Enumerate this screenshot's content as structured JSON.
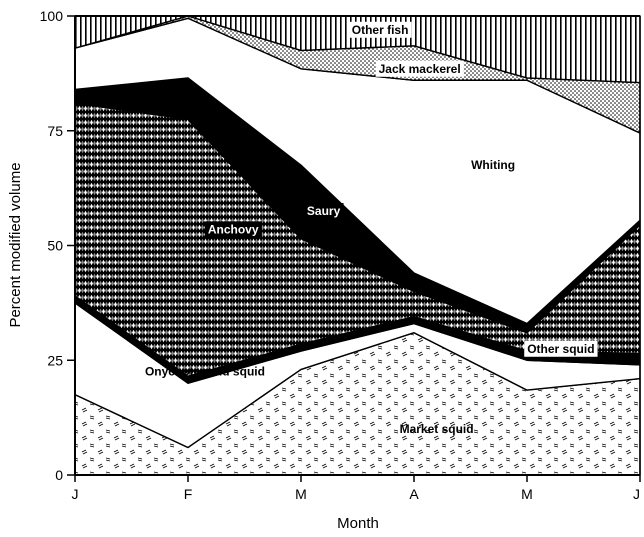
{
  "chart_data": {
    "type": "area",
    "stacked": true,
    "xlabel": "Month",
    "ylabel": "Percent modified volume",
    "x": [
      "J",
      "F",
      "M",
      "A",
      "M",
      "J"
    ],
    "ylim": [
      0,
      100
    ],
    "yticks": [
      0,
      25,
      50,
      75,
      100
    ],
    "grid": false,
    "legend": "none",
    "series": [
      {
        "name": "Market squid",
        "values": [
          17.5,
          6,
          23,
          31,
          18.5,
          21
        ],
        "pattern": "dashes"
      },
      {
        "name": "Onychoteuthid squid",
        "values": [
          20,
          14,
          4,
          2,
          6.5,
          3
        ],
        "pattern": "white"
      },
      {
        "name": "Other squid",
        "values": [
          1.5,
          1.5,
          1.5,
          1.5,
          2,
          2.5
        ],
        "pattern": "black"
      },
      {
        "name": "Anchovy",
        "values": [
          42,
          56,
          23,
          5.5,
          4,
          28
        ],
        "pattern": "diamonds"
      },
      {
        "name": "Saury",
        "values": [
          3,
          9,
          16,
          4,
          2,
          1
        ],
        "pattern": "black"
      },
      {
        "name": "Whiting",
        "values": [
          9,
          13,
          21,
          42,
          53,
          19
        ],
        "pattern": "white"
      },
      {
        "name": "Jack mackerel",
        "values": [
          0,
          0.5,
          4,
          7.5,
          0.5,
          11
        ],
        "pattern": "dots"
      },
      {
        "name": "Other fish",
        "values": [
          7,
          0,
          7.5,
          6.5,
          13.5,
          14.5
        ],
        "pattern": "vertical"
      }
    ],
    "labels": [
      {
        "text": "Market squid",
        "at": [
          3.2,
          10
        ],
        "color": "#000000",
        "boxed": false
      },
      {
        "text": "Onychoteuthid squid",
        "at": [
          1.15,
          22.5
        ],
        "color": "#000000",
        "boxed": false
      },
      {
        "text": "Other squid",
        "at": [
          4.3,
          27.5
        ],
        "color": "#000000",
        "boxed": true
      },
      {
        "text": "Anchovy",
        "at": [
          1.4,
          53.5
        ],
        "color": "#ffffff",
        "boxed": true
      },
      {
        "text": "Saury",
        "at": [
          2.2,
          57.5
        ],
        "color": "#ffffff",
        "boxed": true
      },
      {
        "text": "Whiting",
        "at": [
          3.7,
          67.5
        ],
        "color": "#000000",
        "boxed": false
      },
      {
        "text": "Jack mackerel",
        "at": [
          3.05,
          88.5
        ],
        "color": "#000000",
        "boxed": true
      },
      {
        "text": "Other fish",
        "at": [
          2.7,
          97
        ],
        "color": "#000000",
        "boxed": true
      }
    ]
  }
}
